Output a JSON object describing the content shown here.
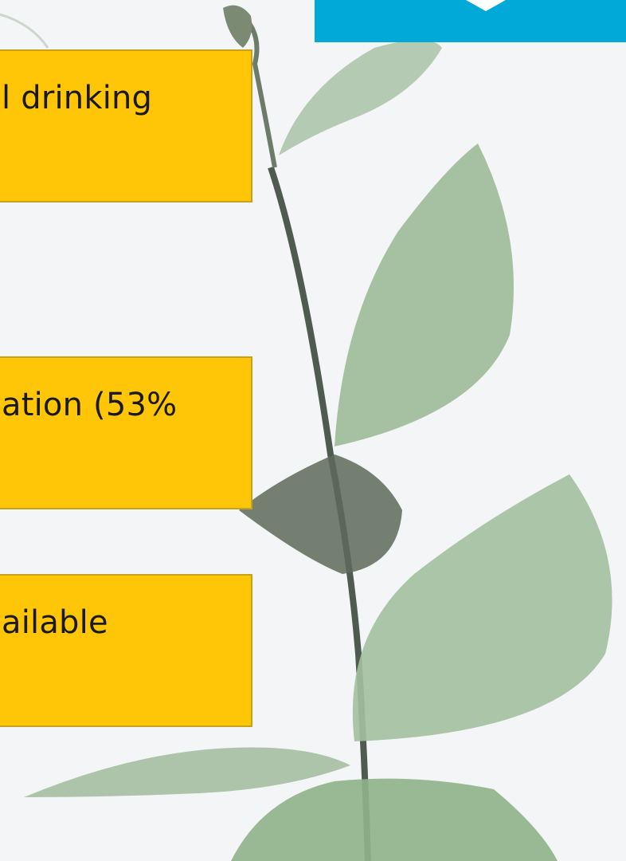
{
  "boxes": [
    {
      "text": "l drinking"
    },
    {
      "text": "ation (53%"
    },
    {
      "text": "ailable"
    }
  ]
}
